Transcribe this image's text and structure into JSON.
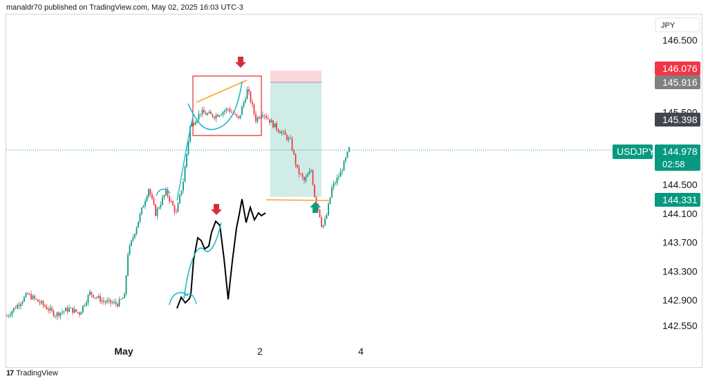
{
  "header": {
    "text": "manaldr70 published on TradingView.com, May 02, 2025 16:03 UTC-3"
  },
  "footer": {
    "logo_glyph": "17",
    "brand": "TradingView"
  },
  "chart_data": {
    "type": "candlestick",
    "symbol": "USDJPY",
    "currency": "JPY",
    "y_ticks": [
      146.5,
      145.5,
      144.5,
      144.1,
      143.7,
      143.3,
      142.9,
      142.55
    ],
    "y_tick_labels": [
      "146.500",
      "145.500",
      "144.500",
      "144.100",
      "143.700",
      "143.300",
      "142.900",
      "142.550"
    ],
    "x_ticks": [
      "May",
      "2",
      "4"
    ],
    "price_tags": [
      {
        "value": "146.076",
        "color": "#f23645"
      },
      {
        "value": "145.916",
        "color": "#808080"
      },
      {
        "value": "145.398",
        "color": "#434651"
      },
      {
        "value": "144.978",
        "sub": "02:58",
        "color": "#089981",
        "symbol": "USDJPY"
      },
      {
        "value": "144.331",
        "color": "#089981"
      }
    ],
    "last_price": 144.978,
    "position": {
      "stop": 146.076,
      "entry": 145.916,
      "target": 144.331
    },
    "up_color": "#089981",
    "down_color": "#f23645",
    "annotation_colors": {
      "pattern": "#22b7c9",
      "trendline": "#f7a325",
      "box": "#e53935",
      "sketch": "#000000",
      "arrow_down": "#d32f3a",
      "arrow_up": "#0e9c82"
    }
  }
}
